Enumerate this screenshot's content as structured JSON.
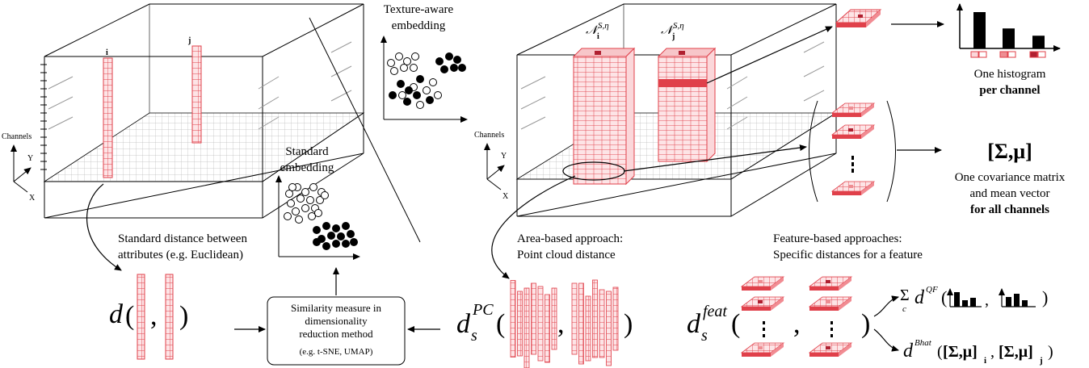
{
  "colors": {
    "accent_red": "#e0404a",
    "light_red": "#f7c6c9",
    "mid_red": "#ee8d92",
    "dark_red": "#b02030",
    "grid": "#bbbbbb"
  },
  "left_cube": {
    "axis_channels": "Channels",
    "axis_y": "Y",
    "axis_x": "X",
    "label_i": "i",
    "label_j": "j"
  },
  "right_cube": {
    "axis_channels": "Channels",
    "axis_y": "Y",
    "axis_x": "X",
    "neigh_i_sym": "𝒩",
    "neigh_i_sub": "i",
    "neigh_i_sup": "S,η",
    "neigh_j_sym": "𝒩",
    "neigh_j_sub": "j",
    "neigh_j_sup": "S,η"
  },
  "embeddings": {
    "texture_aware": [
      "Texture-aware",
      "embedding"
    ],
    "standard": [
      "Standard",
      "embedding"
    ]
  },
  "captions": {
    "standard_distance": [
      "Standard distance between",
      "attributes (e.g. Euclidean)"
    ],
    "area_based": [
      "Area-based approach:",
      "Point cloud distance"
    ],
    "feature_based": [
      "Feature-based approaches:",
      "Specific distances for a feature"
    ]
  },
  "similarity_box": [
    "Similarity measure in",
    "dimensionality",
    "reduction method",
    "(e.g. t-SNE, UMAP)"
  ],
  "histogram": {
    "title": "One histogram",
    "subtitle": "per channel",
    "bar_values": [
      1.0,
      0.55,
      0.35
    ]
  },
  "covariance": {
    "symbol": "[Σ,μ]",
    "line1": "One covariance matrix",
    "line2": "and mean vector",
    "line3": "for all channels"
  },
  "formulas": {
    "d_plain": "d",
    "d_pc_base": "d",
    "d_pc_sub": "s",
    "d_pc_sup": "PC",
    "d_feat_base": "d",
    "d_feat_sub": "s",
    "d_feat_sup": "feat",
    "sum_symbol": "Σ",
    "sum_sub": "c",
    "qf_base": "d",
    "qf_sup": "QF",
    "bhat_base": "d",
    "bhat_sup": "Bhat",
    "bhat_arg1": "[Σ,μ]",
    "bhat_arg1_sub": "i",
    "bhat_arg2": "[Σ,μ]",
    "bhat_arg2_sub": "j",
    "open_paren": "(",
    "close_paren": ")",
    "comma": ","
  }
}
